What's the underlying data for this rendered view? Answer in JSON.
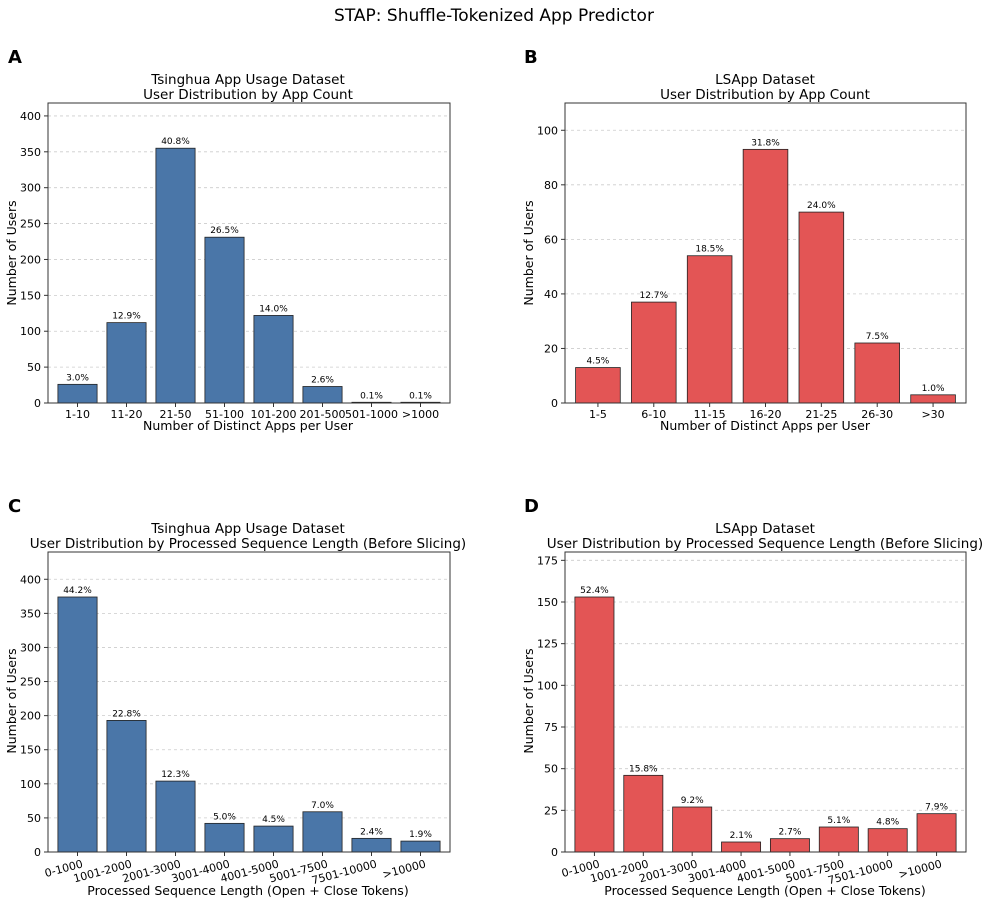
{
  "figure": {
    "title": "STAP: Shuffle-Tokenized App Predictor"
  },
  "chart_data": [
    {
      "panel": "A",
      "type": "bar",
      "title": "Tsinghua App Usage Dataset",
      "subtitle": "User Distribution by App Count",
      "xlabel": "Number of Distinct Apps per User",
      "ylabel": "Number of Users",
      "categories": [
        "1-10",
        "11-20",
        "21-50",
        "51-100",
        "101-200",
        "201-500",
        "501-1000",
        ">1000"
      ],
      "values": [
        26,
        112,
        355,
        231,
        122,
        23,
        1,
        1
      ],
      "labels": [
        "3.0%",
        "12.9%",
        "40.8%",
        "26.5%",
        "14.0%",
        "2.6%",
        "0.1%",
        "0.1%"
      ],
      "ylim": [
        0,
        418
      ],
      "yticks": [
        0,
        50,
        100,
        150,
        200,
        250,
        300,
        350,
        400
      ],
      "color": "#4a76a8",
      "grid": true,
      "xtick_rotation": 0
    },
    {
      "panel": "B",
      "type": "bar",
      "title": "LSApp Dataset",
      "subtitle": "User Distribution by App Count",
      "xlabel": "Number of Distinct Apps per User",
      "ylabel": "Number of Users",
      "categories": [
        "1-5",
        "6-10",
        "11-15",
        "16-20",
        "21-25",
        "26-30",
        ">30"
      ],
      "values": [
        13,
        37,
        54,
        93,
        70,
        22,
        3
      ],
      "labels": [
        "4.5%",
        "12.7%",
        "18.5%",
        "31.8%",
        "24.0%",
        "7.5%",
        "1.0%"
      ],
      "ylim": [
        0,
        110
      ],
      "yticks": [
        0,
        20,
        40,
        60,
        80,
        100
      ],
      "color": "#e35555",
      "grid": true,
      "xtick_rotation": 0
    },
    {
      "panel": "C",
      "type": "bar",
      "title": "Tsinghua App Usage Dataset",
      "subtitle": "User Distribution by Processed Sequence Length (Before Slicing)",
      "xlabel": "Processed Sequence Length (Open + Close Tokens)",
      "ylabel": "Number of Users",
      "categories": [
        "0-1000",
        "1001-2000",
        "2001-3000",
        "3001-4000",
        "4001-5000",
        "5001-7500",
        "7501-10000",
        ">10000"
      ],
      "values": [
        374,
        193,
        104,
        42,
        38,
        59,
        20,
        16
      ],
      "labels": [
        "44.2%",
        "22.8%",
        "12.3%",
        "5.0%",
        "4.5%",
        "7.0%",
        "2.4%",
        "1.9%"
      ],
      "ylim": [
        0,
        440
      ],
      "yticks": [
        0,
        50,
        100,
        150,
        200,
        250,
        300,
        350,
        400
      ],
      "color": "#4a76a8",
      "grid": true,
      "xtick_rotation": -15
    },
    {
      "panel": "D",
      "type": "bar",
      "title": "LSApp Dataset",
      "subtitle": "User Distribution by Processed Sequence Length (Before Slicing)",
      "xlabel": "Processed Sequence Length (Open + Close Tokens)",
      "ylabel": "Number of Users",
      "categories": [
        "0-1000",
        "1001-2000",
        "2001-3000",
        "3001-4000",
        "4001-5000",
        "5001-7500",
        "7501-10000",
        ">10000"
      ],
      "values": [
        153,
        46,
        27,
        6,
        8,
        15,
        14,
        23
      ],
      "labels": [
        "52.4%",
        "15.8%",
        "9.2%",
        "2.1%",
        "2.7%",
        "5.1%",
        "4.8%",
        "7.9%"
      ],
      "ylim": [
        0,
        180
      ],
      "yticks": [
        0,
        25,
        50,
        75,
        100,
        125,
        150,
        175
      ],
      "color": "#e35555",
      "grid": true,
      "xtick_rotation": -15
    }
  ]
}
